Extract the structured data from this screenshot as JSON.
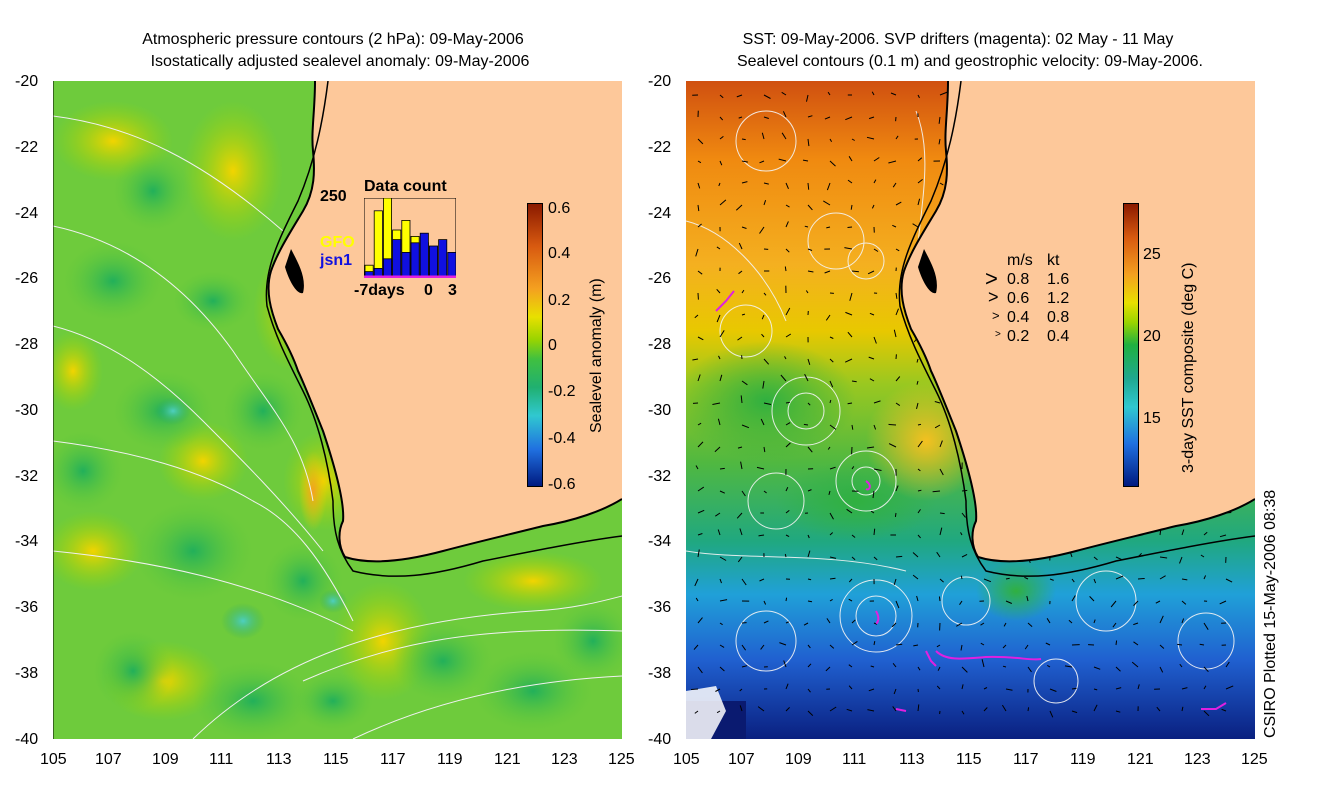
{
  "left_panel": {
    "title_line1": "Atmospheric pressure contours (2 hPa): 09-May-2006",
    "title_line2": "Isostatically adjusted sealevel anomaly: 09-May-2006",
    "y_ticks": [
      "-20",
      "-22",
      "-24",
      "-26",
      "-28",
      "-30",
      "-32",
      "-34",
      "-36",
      "-38",
      "-40"
    ],
    "x_ticks": [
      "105",
      "107",
      "109",
      "111",
      "113",
      "115",
      "117",
      "119",
      "121",
      "123",
      "125"
    ],
    "colorbar": {
      "label": "Sealevel anomaly (m)",
      "ticks": [
        "0.6",
        "0.4",
        "0.2",
        "0",
        "-0.2",
        "-0.4",
        "-0.6"
      ]
    },
    "inset": {
      "title": "Data count",
      "ymax_label": "250",
      "series_gfo": "GFO",
      "series_jsn1": "jsn1",
      "x_labels": [
        "-7days",
        "0",
        "3"
      ],
      "gfo_counts": [
        40,
        210,
        250,
        150,
        180,
        130,
        110,
        60,
        0,
        0
      ],
      "jsn1_counts": [
        20,
        30,
        60,
        120,
        80,
        110,
        140,
        100,
        120,
        80
      ]
    }
  },
  "right_panel": {
    "title_line1": "SST: 09-May-2006. SVP drifters (magenta): 02 May - 11 May",
    "title_line2": "Sealevel contours (0.1 m) and geostrophic velocity: 09-May-2006.",
    "y_ticks": [
      "-20",
      "-22",
      "-24",
      "-26",
      "-28",
      "-30",
      "-32",
      "-34",
      "-36",
      "-38",
      "-40"
    ],
    "x_ticks": [
      "105",
      "107",
      "109",
      "111",
      "113",
      "115",
      "117",
      "119",
      "121",
      "123",
      "125"
    ],
    "colorbar": {
      "label": "3-day SST composite (deg C)",
      "ticks": [
        "25",
        "20",
        "15"
      ]
    },
    "velocity_legend": {
      "header_ms": "m/s",
      "header_kt": "kt",
      "rows": [
        {
          "ms": "0.8",
          "kt": "1.6"
        },
        {
          "ms": "0.6",
          "kt": "1.2"
        },
        {
          "ms": "0.4",
          "kt": "0.8"
        },
        {
          "ms": "0.2",
          "kt": "0.4"
        }
      ]
    }
  },
  "credit": "CSIRO Plotted 15-May-2006 08:38",
  "colors": {
    "land": "#fdc89a",
    "coast": "#000000",
    "drifter": "#e020e0",
    "gfo": "#ffff00",
    "jsn1": "#1010e0"
  }
}
